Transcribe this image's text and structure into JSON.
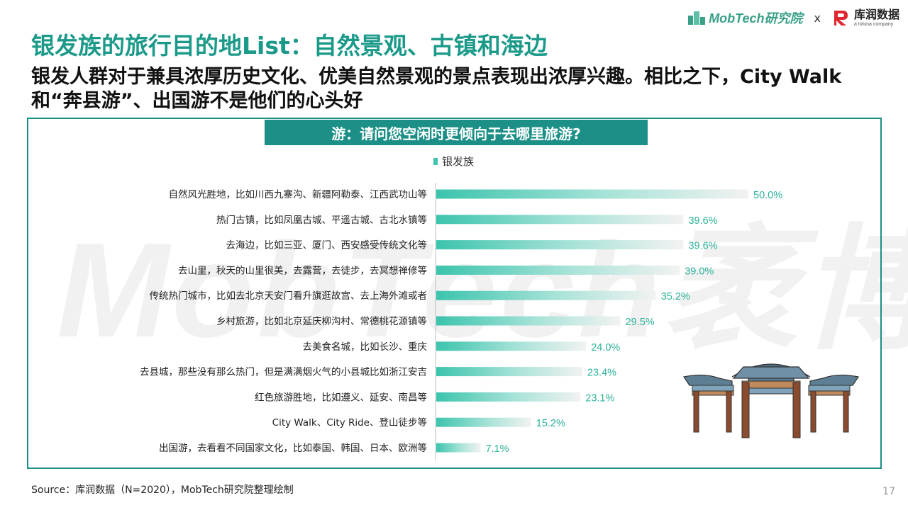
{
  "watermark": "MobTech袤博",
  "logos": {
    "mobtech": "MobTech研究院",
    "separator": "x",
    "partner_name": "库润数据",
    "partner_sub": "a toluna company"
  },
  "title": "银发族的旅行目的地List：自然景观、古镇和海边",
  "subtitle": "银发人群对于兼具浓厚历史文化、优美自然景观的景点表现出浓厚兴趣。相比之下，City Walk和“奔县游”、出国游不是他们的心头好",
  "question": "游：请问您空闲时更倾向于去哪里旅游?",
  "colors": {
    "accent": "#1c8f86",
    "bar": "#3cc4ad",
    "bar_fade": "#f2f2f2",
    "label_value": "#2bb29b"
  },
  "chart_data": {
    "type": "bar",
    "orientation": "horizontal",
    "legend": "top",
    "grid": false,
    "xlim": [
      0,
      50
    ],
    "categories": [
      "自然风光胜地，比如川西九寨沟、新疆阿勒泰、江西武功山等",
      "热门古镇，比如凤凰古城、平遥古城、古北水镇等",
      "去海边，比如三亚、厦门、西安感受传统文化等",
      "去山里，秋天的山里很美，去露营，去徒步，去冥想禅修等",
      "传统热门城市，比如去北京天安门看升旗逛故宫、去上海外滩或者",
      "乡村旅游，比如北京延庆柳沟村、常德桃花源镇等",
      "去美食名城，比如长沙、重庆",
      "去县城，那些没有那么热门，但是满满烟火气的小县城比如浙江安吉",
      "红色旅游胜地，比如遵义、延安、南昌等",
      "City Walk、City Ride、登山徒步等",
      "出国游，去看看不同国家文化，比如泰国、韩国、日本、欧洲等"
    ],
    "series": [
      {
        "name": "银发族",
        "values": [
          50.0,
          39.6,
          39.6,
          39.0,
          35.2,
          29.5,
          24.0,
          23.4,
          23.1,
          15.2,
          7.1
        ]
      }
    ],
    "value_labels": [
      "50.0%",
      "39.6%",
      "39.6%",
      "39.0%",
      "35.2%",
      "29.5%",
      "24.0%",
      "23.4%",
      "23.1%",
      "15.2%",
      "7.1%"
    ]
  },
  "footer": {
    "source": "Source：库润数据（N=2020），MobTech研究院整理绘制",
    "page_number": "17"
  }
}
